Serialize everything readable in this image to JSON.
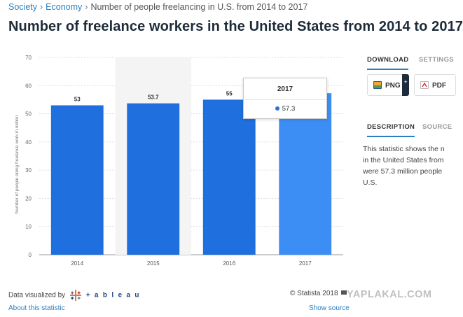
{
  "breadcrumb": {
    "items": [
      "Society",
      "Economy"
    ],
    "current": "Number of people freelancing in U.S. from 2014 to 2017"
  },
  "page_title": "Number of freelance workers in the United States from 2014 to 2017",
  "tooltip": {
    "title": "2017",
    "value": "57.3",
    "dot_color": "#2f6fdc"
  },
  "side": {
    "tabs_top": [
      {
        "label": "DOWNLOAD",
        "active": true
      },
      {
        "label": "SETTINGS",
        "active": false
      }
    ],
    "buttons": [
      {
        "label": "PNG",
        "icon": "png-image-icon"
      },
      {
        "label": "PDF",
        "icon": "pdf-file-icon"
      }
    ],
    "plus_label": "+",
    "tabs_bottom": [
      {
        "label": "DESCRIPTION",
        "active": true
      },
      {
        "label": "SOURCE",
        "active": false
      }
    ],
    "description_lines": [
      "This statistic shows the n",
      "in the United States from",
      "were 57.3 million people",
      "U.S."
    ]
  },
  "footer": {
    "visualized_by": "Data visualized by",
    "tableau": "+ a b l e a u",
    "about": "About this statistic",
    "copyright": "© Statista 2018",
    "show_source": "Show source"
  },
  "watermark": "YAPLAKAL.COM",
  "colors": {
    "bar": "#1f6fde",
    "bar_highlight": "#3c8ef5",
    "hover_band": "#f4f4f4",
    "accent": "#2a7fc1"
  },
  "chart_data": {
    "type": "bar",
    "categories": [
      "2014",
      "2015",
      "2016",
      "2017"
    ],
    "values": [
      53,
      53.7,
      55,
      57.3
    ],
    "value_labels": [
      "53",
      "53.7",
      "55",
      ""
    ],
    "highlight_index": 3,
    "ylabel": "Number of people doing freelance work in million",
    "ylim": [
      0,
      70
    ],
    "yticks": [
      0,
      10,
      20,
      30,
      40,
      50,
      60,
      70
    ],
    "grid": true
  }
}
